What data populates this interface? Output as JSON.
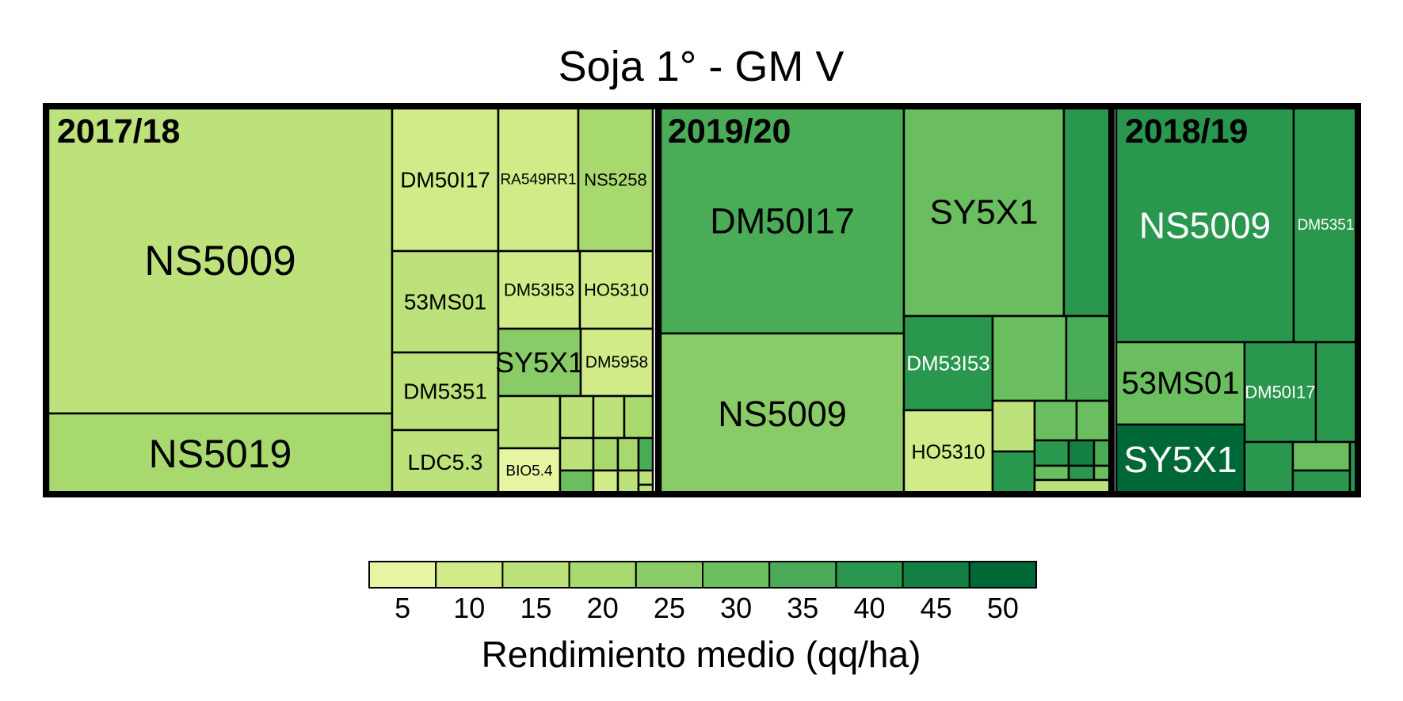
{
  "chart_data": {
    "type": "treemap",
    "title": "Soja 1° - GM V",
    "groups": [
      {
        "label": "2017/18",
        "tiles": [
          {
            "label": "NS5009",
            "value": 15
          },
          {
            "label": "NS5019",
            "value": 22
          },
          {
            "label": "DM50I17",
            "value": 10
          },
          {
            "label": "53MS01",
            "value": 15
          },
          {
            "label": "DM5351",
            "value": 15
          },
          {
            "label": "LDC5.3",
            "value": 15
          },
          {
            "label": "RA549RR1",
            "value": 10
          },
          {
            "label": "NS5258",
            "value": 20
          },
          {
            "label": "DM53I53",
            "value": 10
          },
          {
            "label": "HO5310",
            "value": 10
          },
          {
            "label": "SY5X1",
            "value": 25
          },
          {
            "label": "DM5958",
            "value": 8
          },
          {
            "label": "",
            "value": 15
          },
          {
            "label": "BIO5.4",
            "value": 5
          },
          {
            "label": "",
            "value": 15
          },
          {
            "label": "",
            "value": 15
          },
          {
            "label": "",
            "value": 20
          },
          {
            "label": "",
            "value": 15
          },
          {
            "label": "",
            "value": 20
          },
          {
            "label": "",
            "value": 20
          },
          {
            "label": "",
            "value": 35
          },
          {
            "label": "",
            "value": 30
          },
          {
            "label": "",
            "value": 10
          },
          {
            "label": "",
            "value": 15
          },
          {
            "label": "",
            "value": 15
          },
          {
            "label": "",
            "value": 15
          }
        ]
      },
      {
        "label": "2019/20",
        "tiles": [
          {
            "label": "DM50I17",
            "value": 35
          },
          {
            "label": "NS5009",
            "value": 25
          },
          {
            "label": "SY5X1",
            "value": 30
          },
          {
            "label": "",
            "value": 40
          },
          {
            "label": "DM53I53",
            "value": 40
          },
          {
            "label": "",
            "value": 30
          },
          {
            "label": "",
            "value": 35
          },
          {
            "label": "HO5310",
            "value": 10
          },
          {
            "label": "",
            "value": 15
          },
          {
            "label": "",
            "value": 40
          },
          {
            "label": "",
            "value": 30
          },
          {
            "label": "",
            "value": 30
          },
          {
            "label": "",
            "value": 40
          },
          {
            "label": "",
            "value": 45
          },
          {
            "label": "",
            "value": 35
          },
          {
            "label": "",
            "value": 30
          },
          {
            "label": "",
            "value": 40
          },
          {
            "label": "",
            "value": 30
          },
          {
            "label": "",
            "value": 15
          }
        ]
      },
      {
        "label": "2018/19",
        "tiles": [
          {
            "label": "NS5009",
            "value": 38
          },
          {
            "label": "DM5351",
            "value": 40
          },
          {
            "label": "53MS01",
            "value": 30
          },
          {
            "label": "DM50I17",
            "value": 40
          },
          {
            "label": "",
            "value": 40
          },
          {
            "label": "SY5X1",
            "value": 48
          },
          {
            "label": "",
            "value": 40
          },
          {
            "label": "",
            "value": 30
          },
          {
            "label": "",
            "value": 40
          },
          {
            "label": "",
            "value": 40
          }
        ]
      }
    ],
    "legend": {
      "title": "Rendimiento medio (qq/ha)",
      "ticks": [
        5,
        10,
        15,
        20,
        25,
        30,
        35,
        40,
        45,
        50
      ],
      "colors": [
        "#e6f5a1",
        "#d0eb87",
        "#bde27b",
        "#a8d96e",
        "#89cb66",
        "#6bbe60",
        "#4aac56",
        "#2a974f",
        "#137f42",
        "#006837"
      ]
    }
  }
}
